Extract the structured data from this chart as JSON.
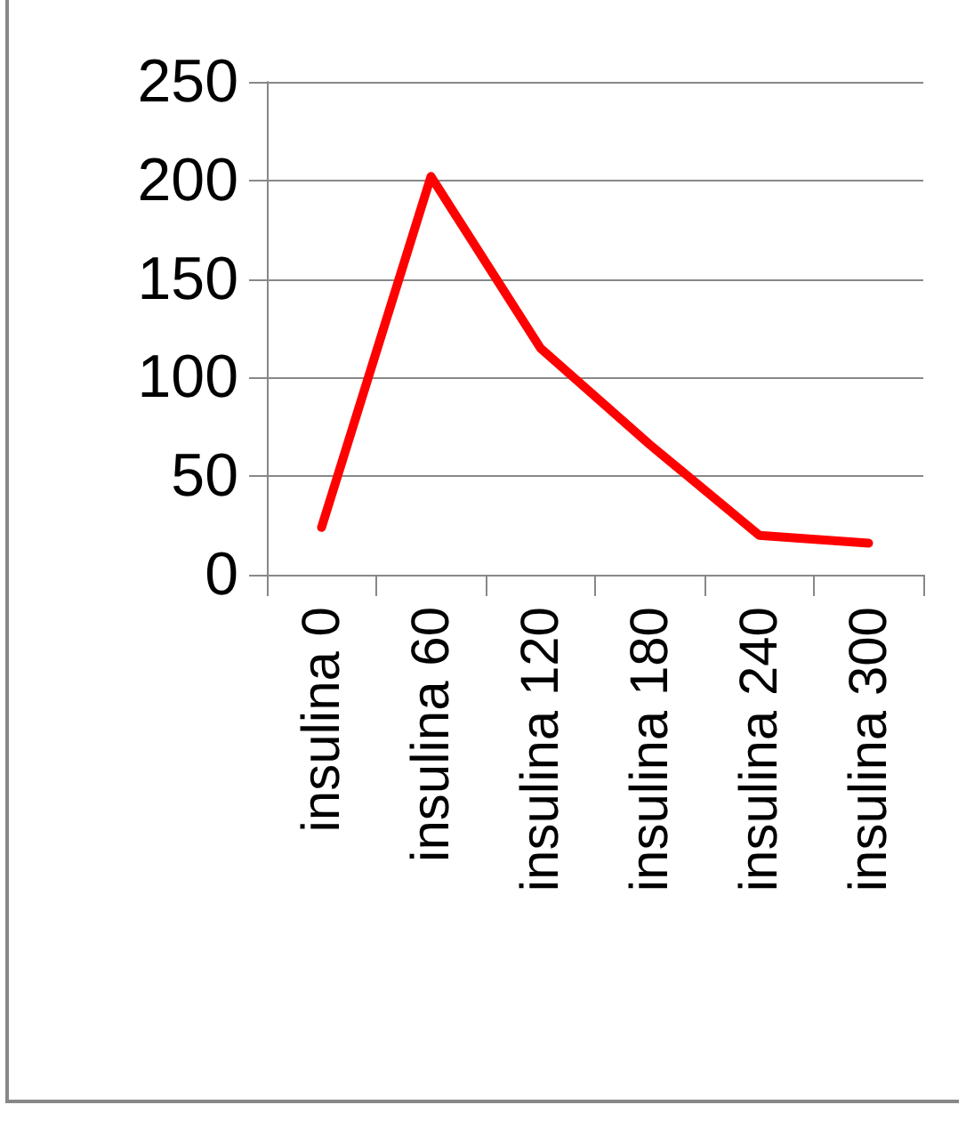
{
  "chart_data": {
    "type": "line",
    "categories": [
      "insulina 0",
      "insulina 60",
      "insulina 120",
      "insulina 180",
      "insulina 240",
      "insulina 300"
    ],
    "series": [
      {
        "color": "#ff0000",
        "values": [
          24,
          202,
          115,
          66,
          20,
          16
        ]
      }
    ],
    "ylim": [
      0,
      250
    ],
    "yticks": [
      0,
      50,
      100,
      150,
      200,
      250
    ],
    "grid": "y",
    "marker": "none",
    "line_style": "solid"
  }
}
